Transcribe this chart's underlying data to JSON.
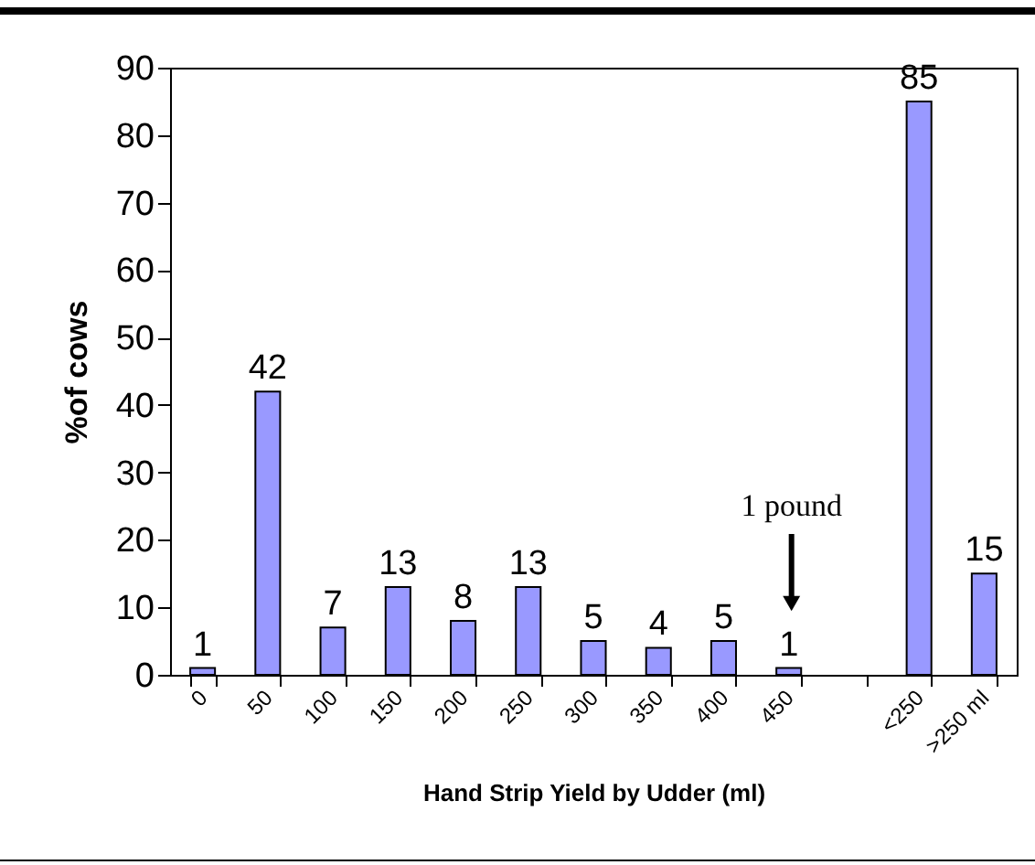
{
  "chart_data": {
    "type": "bar",
    "xlabel": "Hand Strip Yield by Udder (ml)",
    "ylabel": "%of cows",
    "categories": [
      "0",
      "50",
      "100",
      "150",
      "200",
      "250",
      "300",
      "350",
      "400",
      "450",
      null,
      "<250",
      ">250 ml"
    ],
    "values": [
      1,
      42,
      7,
      13,
      8,
      13,
      5,
      4,
      5,
      1,
      null,
      85,
      15
    ],
    "color": "#9999ff",
    "ylim": [
      0,
      90
    ],
    "yticks": [
      0,
      10,
      20,
      30,
      40,
      50,
      60,
      70,
      80,
      90
    ],
    "grid": false,
    "data_labels": true,
    "annotations": [
      "1 pound"
    ]
  }
}
